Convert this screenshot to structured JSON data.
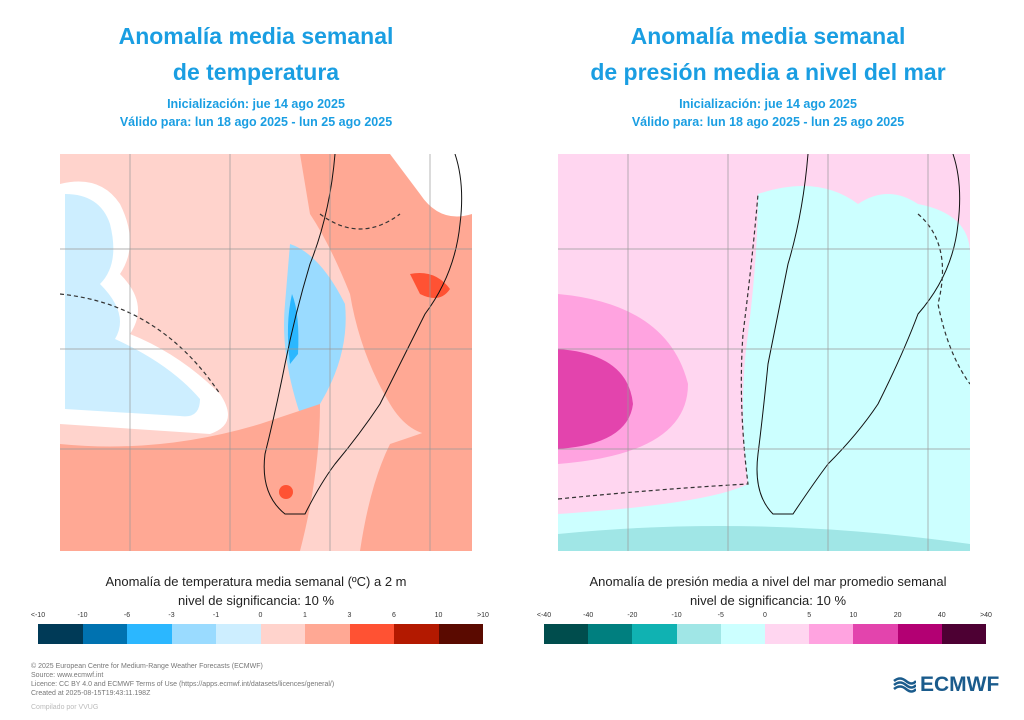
{
  "left": {
    "title_line1": "Anomalía media semanal",
    "title_line2": "de temperatura",
    "init": "Inicialización: jue 14 ago 2025",
    "valid": "Válido para: lun 18 ago 2025 - lun 25 ago 2025",
    "caption_line1": "Anomalía de temperatura media semanal (ºC) a 2 m",
    "caption_line2": "nivel de significancia: 10 %",
    "colorbar": {
      "ticks": [
        "<-10",
        "-10",
        "-6",
        "-3",
        "-1",
        "0",
        "1",
        "3",
        "6",
        "10",
        ">10"
      ],
      "colors": [
        "#003a57",
        "#0072b0",
        "#2bb7ff",
        "#9adbff",
        "#cdeeff",
        "#ffd3cc",
        "#ffa894",
        "#ff5233",
        "#b31900",
        "#5a0a00"
      ]
    }
  },
  "right": {
    "title_line1": "Anomalía media semanal",
    "title_line2": "de presión media a nivel del mar",
    "init": "Inicialización: jue 14 ago 2025",
    "valid": "Válido para: lun 18 ago 2025 - lun 25 ago 2025",
    "caption_line1": "Anomalía de presión media a nivel del mar promedio semanal",
    "caption_line2": "nivel de significancia: 10 %",
    "colorbar": {
      "ticks": [
        "<-40",
        "-40",
        "-20",
        "-10",
        "-5",
        "0",
        "5",
        "10",
        "20",
        "40",
        ">40"
      ],
      "colors": [
        "#004d4d",
        "#007f7f",
        "#10b2b2",
        "#a0e6e6",
        "#ccffff",
        "#ffd6f0",
        "#ffa3e0",
        "#e344ad",
        "#b30073",
        "#4d0033"
      ]
    }
  },
  "footer": {
    "lines": [
      "© 2025 European Centre for Medium-Range Weather Forecasts (ECMWF)",
      "Source: www.ecmwf.int",
      "Licence: CC BY 4.0 and ECMWF Terms of Use (https://apps.ecmwf.int/datasets/licences/general/)",
      "Created at 2025-08-15T19:43:11.198Z"
    ],
    "compiled": "Compilado por VVUG",
    "logo": "ECMWF"
  }
}
